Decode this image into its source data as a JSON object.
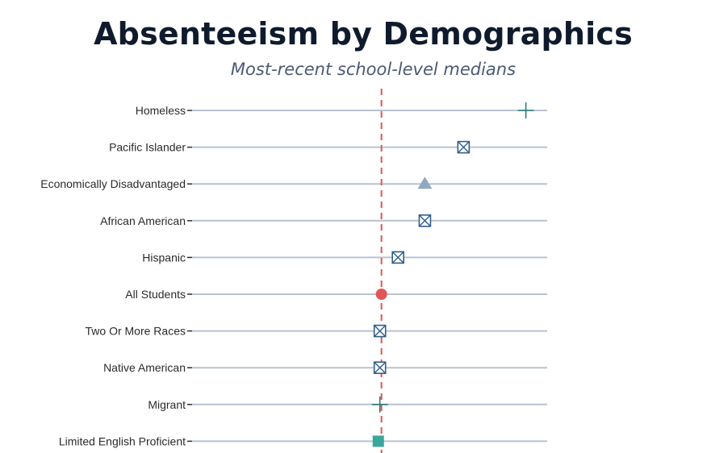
{
  "chart_data": {
    "type": "scatter",
    "title": "Absenteeism by Demographics",
    "subtitle": "Most-recent school-level medians",
    "xlabel": "",
    "ylabel": "",
    "categories": [
      "Homeless",
      "Pacific Islander",
      "Economically Disadvantaged",
      "African American",
      "Hispanic",
      "All Students",
      "Two Or More Races",
      "Native American",
      "Migrant",
      "Limited English Proficient"
    ],
    "values": [
      18.3,
      10.4,
      5.5,
      5.5,
      2.1,
      0.0,
      -0.2,
      -0.2,
      -0.2,
      -0.4
    ],
    "markers": [
      "plus",
      "boxed-x",
      "triangle",
      "boxed-x",
      "boxed-x",
      "circle",
      "boxed-x",
      "boxed-x",
      "plus",
      "square"
    ],
    "marker_colors": [
      "#2e7d7a",
      "#2f5f8a",
      "#8fa9c0",
      "#2f5f8a",
      "#2f5f8a",
      "#e05555",
      "#2f5f8a",
      "#2f5f8a",
      "#2e7d7a",
      "#3aa79a"
    ],
    "reference_line": {
      "value": 0,
      "style": "dashed",
      "color": "#e05555"
    },
    "xlim": [
      -24,
      21
    ],
    "grid": true,
    "legend": "none",
    "line_color": "#b9c2d0"
  }
}
